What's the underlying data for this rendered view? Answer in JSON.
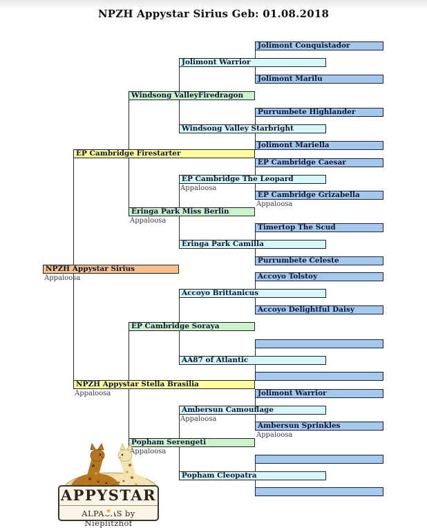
{
  "page": {
    "title": "NPZH Appystar Sirius Geb: 01.08.2018"
  },
  "palette": {
    "gen0_fill": "#f8c18c",
    "gen1_fill": "#ffff9e",
    "gen2_fill": "#ccf2cc",
    "gen3_fill": "#d6f8fa",
    "gen4_fill": "#a4c8f0",
    "box_border": "#1f1f1f",
    "label_color": "#0a1433",
    "sublabel_color": "#343b47",
    "line_color": "#2a2a2a",
    "star_color": "#eba225"
  },
  "pedigree": {
    "breed_note": "Appaloosa",
    "generations": [
      [
        {
          "id": "npzh-appystar-sirius",
          "label": "NPZH Appystar Sirius",
          "sublabel": "Appaloosa"
        }
      ],
      [
        {
          "id": "ep-cambridge-firestarter",
          "label": "EP Cambridge Firestarter",
          "sublabel": ""
        },
        {
          "id": "npzh-appystar-stella-brasilia",
          "label": "NPZH Appystar Stella Brasilia",
          "sublabel": "Appaloosa"
        }
      ],
      [
        {
          "id": "windsong-valleyfiredragon",
          "label": "Windsong ValleyFiredragon",
          "sublabel": ""
        },
        {
          "id": "eringa-park-miss-berlin",
          "label": "Eringa Park Miss Berlin",
          "sublabel": "Appaloosa"
        },
        {
          "id": "ep-cambridge-soraya",
          "label": "EP Cambridge Soraya",
          "sublabel": ""
        },
        {
          "id": "popham-serengeti",
          "label": "Popham Serengeti",
          "sublabel": "Appaloosa"
        }
      ],
      [
        {
          "id": "jolimont-warrior",
          "label": "Jolimont Warrior",
          "sublabel": ""
        },
        {
          "id": "windsong-valley-starbright",
          "label": "Windsong Valley Starbright",
          "sublabel": ""
        },
        {
          "id": "ep-cambridge-the-leopard",
          "label": "EP Cambridge The Leopard",
          "sublabel": "Appaloosa"
        },
        {
          "id": "eringa-park-camilla",
          "label": "Eringa Park Camilla",
          "sublabel": ""
        },
        {
          "id": "accoyo-brittanicus",
          "label": "Accoyo Brittanicus",
          "sublabel": ""
        },
        {
          "id": "aa87-of-atlantic",
          "label": "AA87 of Atlantic",
          "sublabel": ""
        },
        {
          "id": "ambersun-camouflage",
          "label": "Ambersun Camouflage",
          "sublabel": "Appaloosa"
        },
        {
          "id": "popham-cleopatra",
          "label": "Popham Cleopatra",
          "sublabel": ""
        }
      ],
      [
        {
          "id": "jolimont-conquistador",
          "label": "Jolimont Conquistador",
          "sublabel": ""
        },
        {
          "id": "jolimont-marilu",
          "label": "Jolimont Marilu",
          "sublabel": ""
        },
        {
          "id": "purrumbete-highlander",
          "label": "Purrumbete Highlander",
          "sublabel": ""
        },
        {
          "id": "jolimont-mariella",
          "label": "Jolimont Mariella",
          "sublabel": ""
        },
        {
          "id": "ep-cambridge-caesar",
          "label": "EP Cambridge Caesar",
          "sublabel": ""
        },
        {
          "id": "ep-cambridge-grizabella",
          "label": "EP Cambridge Grizabella",
          "sublabel": "Appaloosa"
        },
        {
          "id": "timertop-the-scud",
          "label": "Timertop The Scud",
          "sublabel": ""
        },
        {
          "id": "purrumbete-celeste",
          "label": "Purrumbete Celeste",
          "sublabel": ""
        },
        {
          "id": "accoyo-tolstoy",
          "label": "Accoyo Tolstoy",
          "sublabel": ""
        },
        {
          "id": "accoyo-delightful-daisy",
          "label": "Accoyo Delightful Daisy",
          "sublabel": ""
        },
        {
          "id": "unknown-1",
          "label": "",
          "sublabel": ""
        },
        {
          "id": "unknown-2",
          "label": "",
          "sublabel": ""
        },
        {
          "id": "jolimont-warrior-2",
          "label": "Jolimont Warrior",
          "sublabel": ""
        },
        {
          "id": "ambersun-sprinkles",
          "label": "Ambersun Sprinkles",
          "sublabel": "Appaloosa"
        },
        {
          "id": "unknown-3",
          "label": "",
          "sublabel": ""
        },
        {
          "id": "unknown-4",
          "label": "",
          "sublabel": ""
        }
      ]
    ]
  },
  "logo": {
    "title": "APPYSTAR",
    "subtitle": "ALPACAS by Nieplitzhof",
    "star_icon": "★"
  }
}
